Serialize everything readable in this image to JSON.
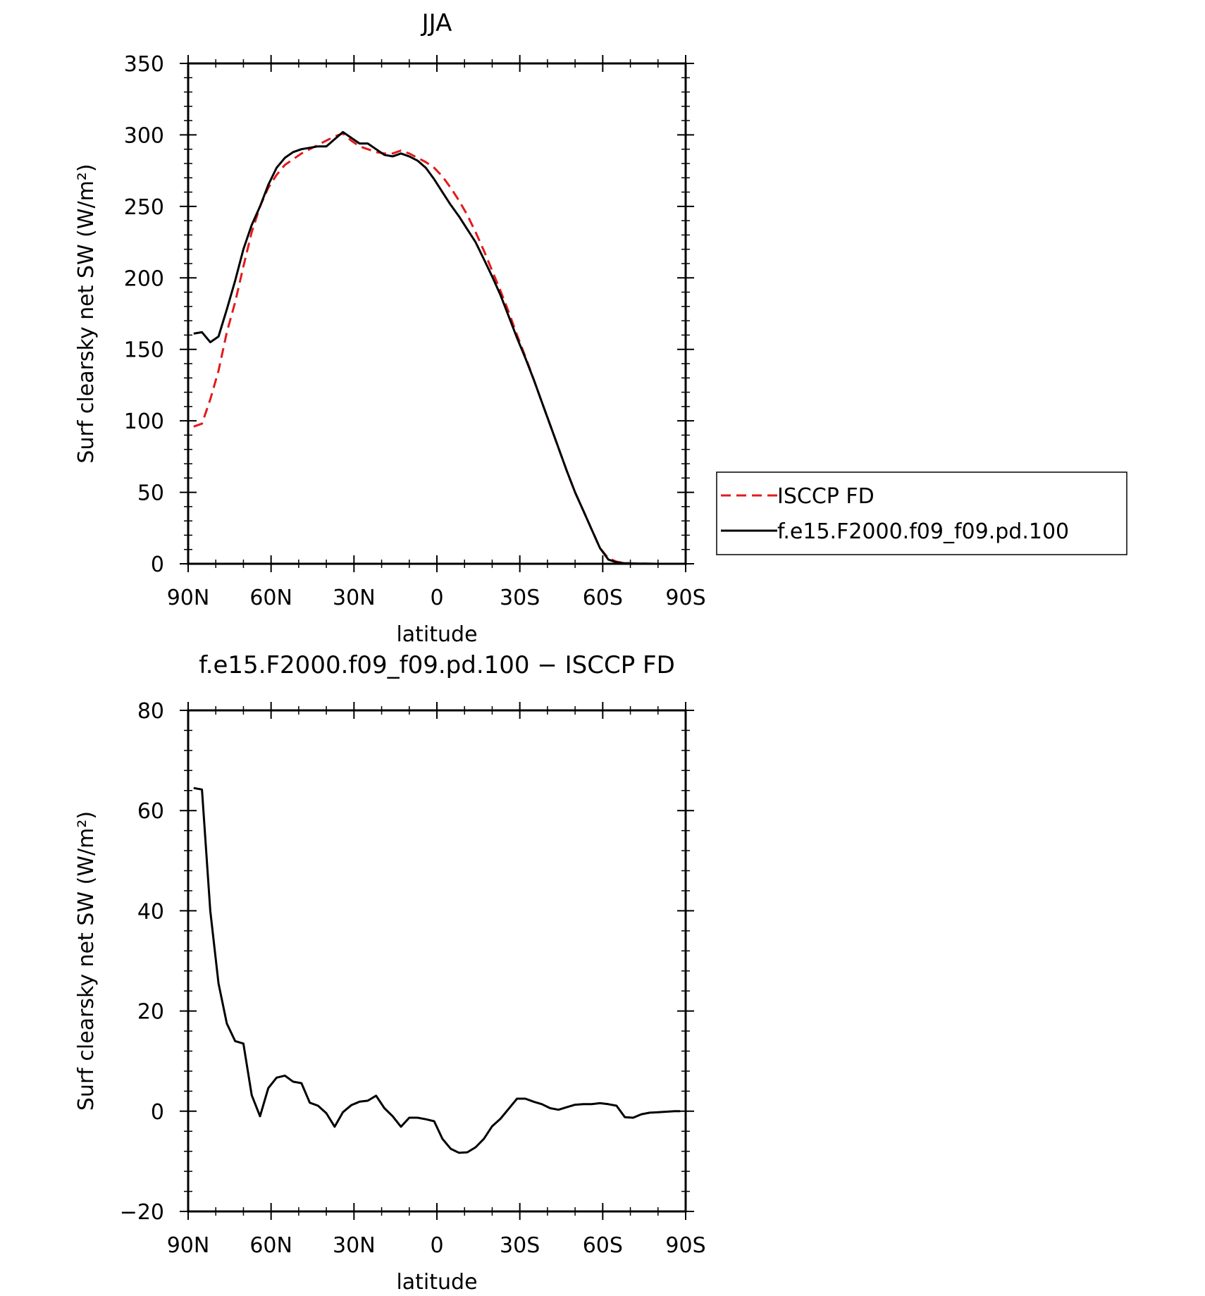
{
  "chart_data": [
    {
      "type": "line",
      "title": "JJA",
      "xlabel": "latitude",
      "ylabel": "Surf clearsky net SW (W/m²)",
      "ylim": [
        0,
        350
      ],
      "xlim": [
        90,
        -90
      ],
      "xticks": [
        {
          "value": 90,
          "label": "90N"
        },
        {
          "value": 60,
          "label": "60N"
        },
        {
          "value": 30,
          "label": "30N"
        },
        {
          "value": 0,
          "label": "0"
        },
        {
          "value": -30,
          "label": "30S"
        },
        {
          "value": -60,
          "label": "60S"
        },
        {
          "value": -90,
          "label": "90S"
        }
      ],
      "yticks": [
        0,
        50,
        100,
        150,
        200,
        250,
        300,
        350
      ],
      "legend": {
        "placement": "right",
        "entries": [
          {
            "label": "ISCCP FD",
            "color": "#e31a1c",
            "dash": "dashed"
          },
          {
            "label": "f.e15.F2000.f09_f09.pd.100",
            "color": "#000000",
            "dash": "solid"
          }
        ]
      },
      "series": [
        {
          "name": "ISCCP FD",
          "color": "#e31a1c",
          "dash": "dashed",
          "x": [
            88,
            85,
            82,
            79,
            76,
            73,
            70,
            67,
            64,
            61,
            58,
            55,
            52,
            49,
            46,
            43,
            40,
            37,
            34,
            31,
            28,
            25,
            22,
            19,
            16,
            13,
            10,
            7,
            4,
            1,
            -2,
            -5,
            -8,
            -11,
            -14,
            -17,
            -20,
            -23,
            -26,
            -29,
            -32,
            -35,
            -38,
            -41,
            -44,
            -47,
            -50,
            -53,
            -56,
            -59,
            -62,
            -65,
            -68,
            -71,
            -74,
            -77,
            -80,
            -83,
            -86,
            -88
          ],
          "y": [
            96,
            98,
            115,
            135,
            162,
            183,
            208,
            232,
            250,
            263,
            272,
            279,
            283,
            287,
            290,
            293,
            296,
            299,
            301,
            296,
            292,
            290,
            288,
            287,
            287,
            289,
            287,
            284,
            281,
            277,
            271,
            263,
            254,
            244,
            232,
            219,
            205,
            191,
            176,
            160,
            145,
            129,
            113,
            97,
            81,
            65,
            50,
            37,
            24,
            11,
            4,
            1.5,
            0.5,
            0.2,
            0.1,
            0.05,
            0,
            0,
            0,
            0
          ]
        },
        {
          "name": "f.e15.F2000.f09_f09.pd.100",
          "color": "#000000",
          "dash": "solid",
          "x": [
            88,
            85,
            82,
            79,
            76,
            73,
            70,
            67,
            64,
            61,
            58,
            55,
            52,
            49,
            46,
            43,
            40,
            37,
            34,
            31,
            28,
            25,
            22,
            19,
            16,
            13,
            10,
            7,
            4,
            1,
            -2,
            -5,
            -8,
            -11,
            -14,
            -17,
            -20,
            -23,
            -26,
            -29,
            -32,
            -35,
            -38,
            -41,
            -44,
            -47,
            -50,
            -53,
            -56,
            -59,
            -62,
            -65,
            -68,
            -71,
            -74,
            -77,
            -80,
            -83,
            -86,
            -88
          ],
          "y": [
            161,
            162,
            155,
            159,
            178,
            198,
            220,
            237,
            250,
            265,
            277,
            284,
            288,
            290,
            291,
            292,
            292,
            297,
            302,
            298,
            294,
            294,
            290,
            286,
            285,
            287,
            285,
            282,
            277,
            269,
            260,
            251,
            243,
            234,
            225,
            213,
            201,
            188,
            173,
            158,
            144,
            129,
            113,
            97,
            81,
            65,
            50,
            37,
            24,
            11,
            3,
            1,
            0.4,
            0.2,
            0.1,
            0.05,
            0,
            0,
            0,
            0
          ]
        }
      ]
    },
    {
      "type": "line",
      "title": "f.e15.F2000.f09_f09.pd.100 − ISCCP FD",
      "xlabel": "latitude",
      "ylabel": "Surf clearsky net SW (W/m²)",
      "ylim": [
        -20,
        80
      ],
      "xlim": [
        90,
        -90
      ],
      "xticks": [
        {
          "value": 90,
          "label": "90N"
        },
        {
          "value": 60,
          "label": "60N"
        },
        {
          "value": 30,
          "label": "30N"
        },
        {
          "value": 0,
          "label": "0"
        },
        {
          "value": -30,
          "label": "30S"
        },
        {
          "value": -60,
          "label": "60S"
        },
        {
          "value": -90,
          "label": "90S"
        }
      ],
      "yticks": [
        -20,
        0,
        20,
        40,
        60,
        80
      ],
      "series": [
        {
          "color": "#000000",
          "dash": "solid",
          "x": [
            88,
            85,
            82,
            79,
            76,
            73,
            70,
            67,
            64,
            61,
            58,
            55,
            52,
            49,
            46,
            43,
            40,
            37,
            34,
            31,
            28,
            25,
            22,
            19,
            16,
            13,
            10,
            7,
            4,
            1,
            -2,
            -5,
            -8,
            -11,
            -14,
            -17,
            -20,
            -23,
            -26,
            -29,
            -32,
            -35,
            -38,
            -41,
            -44,
            -47,
            -50,
            -53,
            -56,
            -59,
            -62,
            -65,
            -68,
            -71,
            -74,
            -77,
            -80,
            -83,
            -86,
            -88
          ],
          "y": [
            64.5,
            64.2,
            40,
            25.5,
            17.5,
            14,
            13.5,
            3.2,
            -1,
            4.6,
            6.7,
            7.1,
            5.9,
            5.6,
            1.7,
            1.1,
            -0.4,
            -3.1,
            -0.2,
            1.2,
            1.9,
            2.1,
            3.1,
            0.6,
            -1,
            -3.1,
            -1.3,
            -1.3,
            -1.6,
            -2,
            -5.5,
            -7.5,
            -8.3,
            -8.2,
            -7.2,
            -5.5,
            -3,
            -1.5,
            0.5,
            2.5,
            2.5,
            1.9,
            1.4,
            0.6,
            0.3,
            0.8,
            1.3,
            1.4,
            1.4,
            1.6,
            1.4,
            1.1,
            -1.2,
            -1.3,
            -0.6,
            -0.3,
            -0.2,
            -0.1,
            0,
            0
          ]
        }
      ]
    }
  ]
}
